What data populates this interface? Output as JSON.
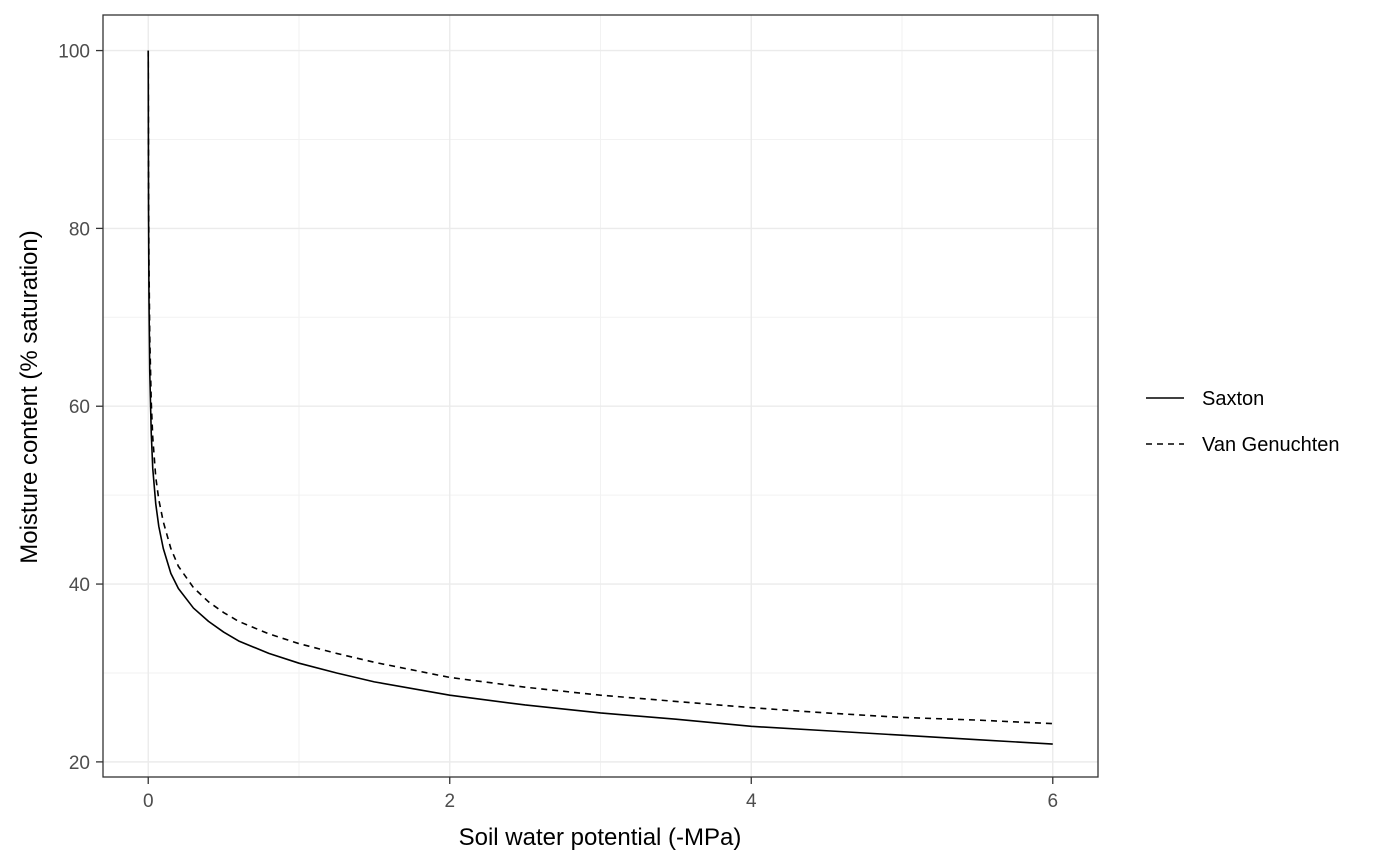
{
  "chart_data": {
    "type": "line",
    "title": "",
    "xlabel": "Soil water potential (-MPa)",
    "ylabel": "Moisture content (% saturation)",
    "xlim": [
      -0.3,
      6.3
    ],
    "ylim": [
      18.3,
      104.0
    ],
    "x_ticks": [
      0,
      2,
      4,
      6
    ],
    "y_ticks": [
      20,
      40,
      60,
      80,
      100
    ],
    "x_tick_labels": [
      "0",
      "2",
      "4",
      "6"
    ],
    "y_tick_labels": [
      "20",
      "40",
      "60",
      "80",
      "100"
    ],
    "grid": true,
    "legend_position": "right",
    "series": [
      {
        "name": "Saxton",
        "line_style": "solid",
        "color": "#000000",
        "x": [
          0.0,
          0.002,
          0.005,
          0.01,
          0.02,
          0.03,
          0.05,
          0.07,
          0.1,
          0.15,
          0.2,
          0.3,
          0.4,
          0.5,
          0.6,
          0.8,
          1.0,
          1.25,
          1.5,
          2.0,
          2.5,
          3.0,
          3.5,
          4.0,
          4.5,
          5.0,
          5.5,
          6.0
        ],
        "values": [
          100,
          82,
          72,
          64,
          57,
          53,
          49,
          46.5,
          44,
          41.2,
          39.5,
          37.3,
          35.8,
          34.6,
          33.6,
          32.2,
          31.1,
          30.0,
          29.0,
          27.5,
          26.4,
          25.5,
          24.8,
          24.0,
          23.5,
          23.0,
          22.5,
          22.0
        ]
      },
      {
        "name": "Van Genuchten",
        "line_style": "dashed",
        "color": "#000000",
        "x": [
          0.0,
          0.002,
          0.005,
          0.01,
          0.02,
          0.03,
          0.05,
          0.07,
          0.1,
          0.15,
          0.2,
          0.3,
          0.4,
          0.5,
          0.6,
          0.8,
          1.0,
          1.25,
          1.5,
          2.0,
          2.5,
          3.0,
          3.5,
          4.0,
          4.5,
          5.0,
          5.5,
          6.0
        ],
        "values": [
          100,
          86,
          76,
          68,
          60.5,
          56.5,
          52,
          49.5,
          47,
          44,
          42,
          39.6,
          38.0,
          36.8,
          35.8,
          34.4,
          33.3,
          32.2,
          31.2,
          29.5,
          28.4,
          27.5,
          26.8,
          26.1,
          25.5,
          25.0,
          24.7,
          24.3
        ]
      }
    ]
  }
}
